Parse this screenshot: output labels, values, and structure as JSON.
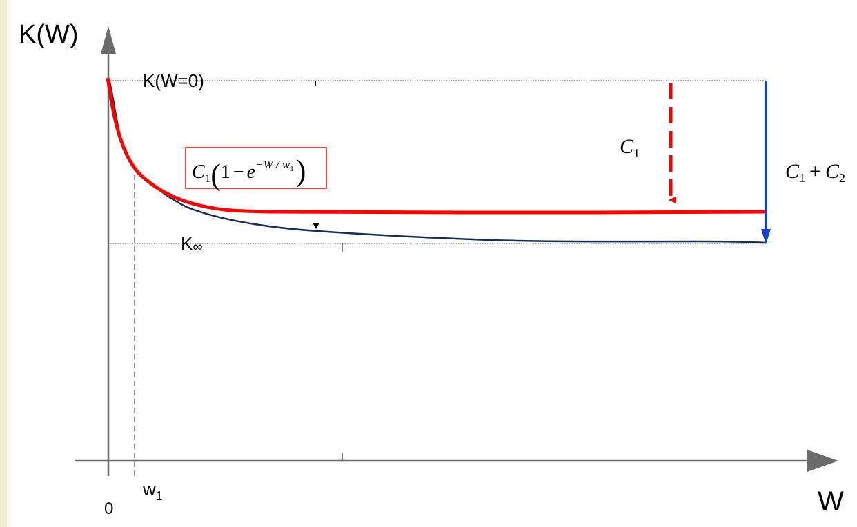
{
  "axes": {
    "y_label": "K(W)",
    "x_label": "W",
    "origin_label": "0"
  },
  "markers": {
    "k0_label": "K(W=0)",
    "kinf_label": "K",
    "kinf_symbol": "∞",
    "w1_label": "w",
    "w1_sub": "1"
  },
  "formula": {
    "c": "C",
    "c_sub": "1",
    "open": "(",
    "one": "1",
    "minus": "−",
    "e": "e",
    "exponent": "−W / w",
    "exp_sub": "1",
    "close": ")"
  },
  "arrows": {
    "c1_label": "C",
    "c1_sub": "1",
    "c1c2_c": "C",
    "c1c2_sub1": "1",
    "c1c2_plus": "+",
    "c1c2_c2": "C",
    "c1c2_sub2": "2"
  },
  "colors": {
    "background": "#f3ebcf",
    "red_curve": "#ff0000",
    "blue_curve": "#1a2b4f",
    "blue_arrow": "#1240d8",
    "axis": "#6b6b6b"
  }
}
